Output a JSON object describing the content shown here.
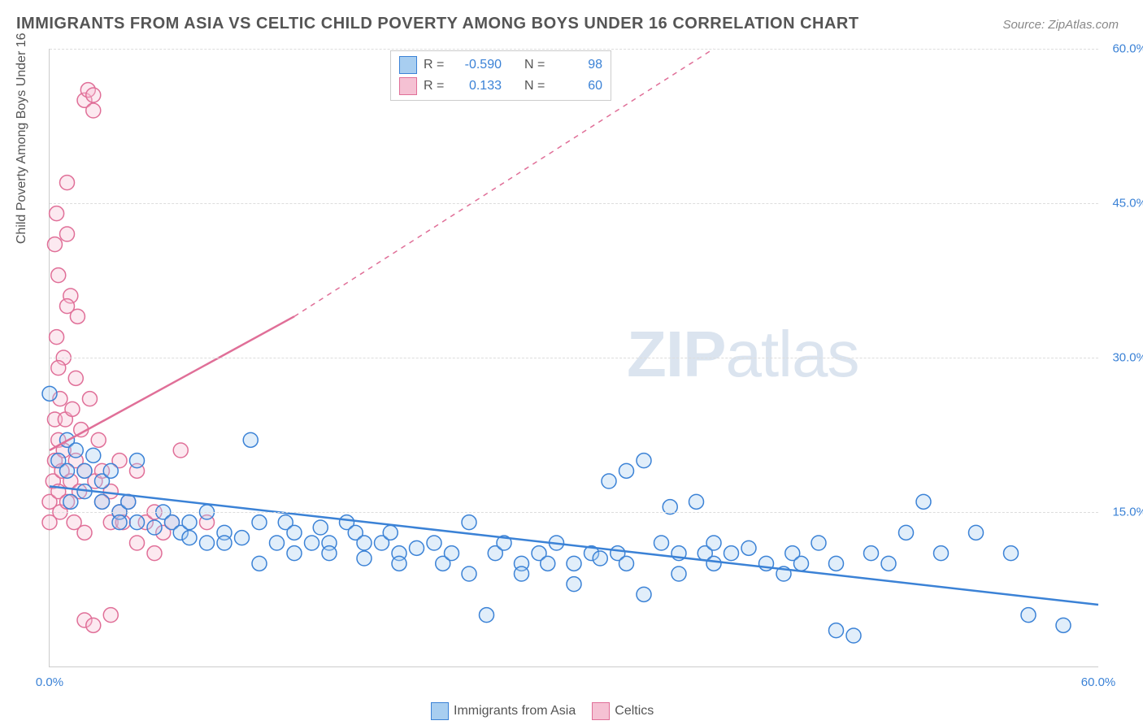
{
  "title": "IMMIGRANTS FROM ASIA VS CELTIC CHILD POVERTY AMONG BOYS UNDER 16 CORRELATION CHART",
  "source": "Source: ZipAtlas.com",
  "watermark_bold": "ZIP",
  "watermark_light": "atlas",
  "y_axis_label": "Child Poverty Among Boys Under 16",
  "chart": {
    "type": "scatter",
    "background_color": "#ffffff",
    "grid_color": "#dddddd",
    "axis_color": "#cccccc",
    "xlim": [
      0,
      60
    ],
    "ylim": [
      0,
      60
    ],
    "x_ticks": [
      {
        "pos": 0,
        "label": "0.0%"
      },
      {
        "pos": 60,
        "label": "60.0%"
      }
    ],
    "y_ticks": [
      {
        "pos": 15,
        "label": "15.0%"
      },
      {
        "pos": 30,
        "label": "30.0%"
      },
      {
        "pos": 45,
        "label": "45.0%"
      },
      {
        "pos": 60,
        "label": "60.0%"
      }
    ],
    "marker_radius": 9,
    "marker_fill_opacity": 0.35,
    "marker_stroke_width": 1.5,
    "trend_line_width": 2.5,
    "series": [
      {
        "name": "Immigrants from Asia",
        "color": "#6aa5e0",
        "stroke": "#3b82d6",
        "fill": "#a8cef0",
        "R": "-0.590",
        "N": "98",
        "trend": {
          "x1": 0,
          "y1": 17.5,
          "x2": 60,
          "y2": 6.0,
          "dash": false
        },
        "points": [
          [
            0,
            26.5
          ],
          [
            0.5,
            20
          ],
          [
            1,
            22
          ],
          [
            1,
            19
          ],
          [
            1.2,
            16
          ],
          [
            1.5,
            21
          ],
          [
            2,
            19
          ],
          [
            2,
            17
          ],
          [
            2.5,
            20.5
          ],
          [
            3,
            18
          ],
          [
            3,
            16
          ],
          [
            3.5,
            19
          ],
          [
            4,
            15
          ],
          [
            4,
            14
          ],
          [
            4.5,
            16
          ],
          [
            5,
            20
          ],
          [
            5,
            14
          ],
          [
            6,
            13.5
          ],
          [
            6.5,
            15
          ],
          [
            7,
            14
          ],
          [
            7.5,
            13
          ],
          [
            8,
            14
          ],
          [
            8,
            12.5
          ],
          [
            9,
            15
          ],
          [
            9,
            12
          ],
          [
            10,
            13
          ],
          [
            10,
            12
          ],
          [
            11,
            12.5
          ],
          [
            11.5,
            22
          ],
          [
            12,
            14
          ],
          [
            12,
            10
          ],
          [
            13,
            12
          ],
          [
            13.5,
            14
          ],
          [
            14,
            13
          ],
          [
            14,
            11
          ],
          [
            15,
            12
          ],
          [
            15.5,
            13.5
          ],
          [
            16,
            12
          ],
          [
            16,
            11
          ],
          [
            17,
            14
          ],
          [
            17.5,
            13
          ],
          [
            18,
            12
          ],
          [
            18,
            10.5
          ],
          [
            19,
            12
          ],
          [
            19.5,
            13
          ],
          [
            20,
            11
          ],
          [
            20,
            10
          ],
          [
            21,
            11.5
          ],
          [
            22,
            12
          ],
          [
            22.5,
            10
          ],
          [
            23,
            11
          ],
          [
            24,
            14
          ],
          [
            24,
            9
          ],
          [
            25,
            5
          ],
          [
            25.5,
            11
          ],
          [
            26,
            12
          ],
          [
            27,
            10
          ],
          [
            27,
            9
          ],
          [
            28,
            11
          ],
          [
            28.5,
            10
          ],
          [
            29,
            12
          ],
          [
            30,
            10
          ],
          [
            30,
            8
          ],
          [
            31,
            11
          ],
          [
            31.5,
            10.5
          ],
          [
            32,
            18
          ],
          [
            32.5,
            11
          ],
          [
            33,
            19
          ],
          [
            33,
            10
          ],
          [
            34,
            20
          ],
          [
            34,
            7
          ],
          [
            35,
            12
          ],
          [
            35.5,
            15.5
          ],
          [
            36,
            11
          ],
          [
            36,
            9
          ],
          [
            37,
            16
          ],
          [
            37.5,
            11
          ],
          [
            38,
            12
          ],
          [
            38,
            10
          ],
          [
            39,
            11
          ],
          [
            40,
            11.5
          ],
          [
            41,
            10
          ],
          [
            42,
            9
          ],
          [
            42.5,
            11
          ],
          [
            43,
            10
          ],
          [
            44,
            12
          ],
          [
            45,
            10
          ],
          [
            45,
            3.5
          ],
          [
            46,
            3
          ],
          [
            47,
            11
          ],
          [
            48,
            10
          ],
          [
            49,
            13
          ],
          [
            50,
            16
          ],
          [
            51,
            11
          ],
          [
            53,
            13
          ],
          [
            55,
            11
          ],
          [
            56,
            5
          ],
          [
            58,
            4
          ]
        ]
      },
      {
        "name": "Celtics",
        "color": "#e89ab5",
        "stroke": "#e06f98",
        "fill": "#f5c1d3",
        "R": "0.133",
        "N": "60",
        "trend_solid": {
          "x1": 0,
          "y1": 21,
          "x2": 14,
          "y2": 34
        },
        "trend_dash": {
          "x1": 14,
          "y1": 34,
          "x2": 38,
          "y2": 60
        },
        "points": [
          [
            0,
            14
          ],
          [
            0,
            16
          ],
          [
            0.2,
            18
          ],
          [
            0.3,
            20
          ],
          [
            0.3,
            24
          ],
          [
            0.4,
            44
          ],
          [
            0.5,
            17
          ],
          [
            0.5,
            22
          ],
          [
            0.5,
            38
          ],
          [
            0.6,
            15
          ],
          [
            0.6,
            26
          ],
          [
            0.7,
            19
          ],
          [
            0.8,
            21
          ],
          [
            0.8,
            30
          ],
          [
            0.9,
            24
          ],
          [
            1,
            16
          ],
          [
            1,
            42
          ],
          [
            1,
            47
          ],
          [
            1.2,
            18
          ],
          [
            1.2,
            36
          ],
          [
            1.3,
            25
          ],
          [
            1.4,
            14
          ],
          [
            1.5,
            20
          ],
          [
            1.5,
            28
          ],
          [
            1.6,
            34
          ],
          [
            1.7,
            17
          ],
          [
            1.8,
            23
          ],
          [
            2,
            55
          ],
          [
            2,
            19
          ],
          [
            2,
            13
          ],
          [
            2.2,
            56
          ],
          [
            2.3,
            26
          ],
          [
            2.5,
            54
          ],
          [
            2.5,
            55.5
          ],
          [
            2.6,
            18
          ],
          [
            2.8,
            22
          ],
          [
            3,
            16
          ],
          [
            3,
            19
          ],
          [
            3.5,
            14
          ],
          [
            3.5,
            17
          ],
          [
            4,
            20
          ],
          [
            4,
            15
          ],
          [
            4.2,
            14
          ],
          [
            4.5,
            16
          ],
          [
            5,
            12
          ],
          [
            5,
            19
          ],
          [
            5.5,
            14
          ],
          [
            6,
            11
          ],
          [
            6,
            15
          ],
          [
            6.5,
            13
          ],
          [
            7,
            14
          ],
          [
            7.5,
            21
          ],
          [
            9,
            14
          ],
          [
            2,
            4.5
          ],
          [
            2.5,
            4
          ],
          [
            3.5,
            5
          ],
          [
            0.3,
            41
          ],
          [
            0.4,
            32
          ],
          [
            0.5,
            29
          ],
          [
            1,
            35
          ]
        ]
      }
    ]
  },
  "legend_top": {
    "r_label": "R =",
    "n_label": "N ="
  },
  "legend_bottom": [
    {
      "label": "Immigrants from Asia",
      "fill": "#a8cef0",
      "stroke": "#3b82d6"
    },
    {
      "label": "Celtics",
      "fill": "#f5c1d3",
      "stroke": "#e06f98"
    }
  ]
}
